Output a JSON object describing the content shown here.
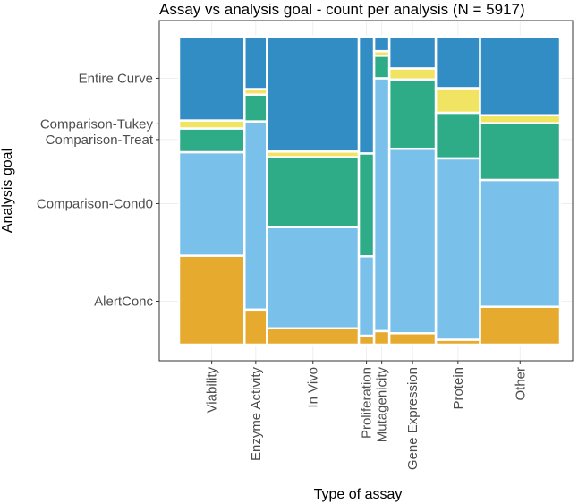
{
  "chart_data": {
    "type": "mosaic",
    "title": "Assay vs analysis goal - count per analysis (N = 5917)",
    "xlabel": "Type of assay",
    "ylabel": "Analysis goal",
    "grid": true,
    "legend": "none",
    "colors": {
      "AlertConc": "#E6A82A",
      "Comparison-Cond0": "#76C0EB",
      "Comparison-Treat": "#2AAA85",
      "Comparison-Tukey": "#F0E35F",
      "Entire Curve": "#2E8BC4"
    },
    "y_ticks": [
      {
        "label": "Entire Curve",
        "value": 0.865
      },
      {
        "label": "Comparison-Tukey",
        "value": 0.717
      },
      {
        "label": "Comparison-Treat",
        "value": 0.666
      },
      {
        "label": "Comparison-Cond0",
        "value": 0.458
      },
      {
        "label": "AlertConc",
        "value": 0.141
      }
    ],
    "goals": [
      "AlertConc",
      "Comparison-Cond0",
      "Comparison-Treat",
      "Comparison-Tukey",
      "Entire Curve"
    ],
    "categories": [
      {
        "name": "Viability",
        "width": 0.172,
        "proportions": [
          0.289,
          0.336,
          0.077,
          0.026,
          0.272
        ]
      },
      {
        "name": "Enzyme Activity",
        "width": 0.059,
        "proportions": [
          0.114,
          0.611,
          0.087,
          0.018,
          0.17
        ]
      },
      {
        "name": "In Vivo",
        "width": 0.241,
        "proportions": [
          0.053,
          0.329,
          0.227,
          0.018,
          0.373
        ]
      },
      {
        "name": "Proliferation",
        "width": 0.04,
        "proportions": [
          0.029,
          0.258,
          0.334,
          0.0,
          0.379
        ]
      },
      {
        "name": "Mutagenicity",
        "width": 0.04,
        "proportions": [
          0.044,
          0.821,
          0.073,
          0.015,
          0.047
        ]
      },
      {
        "name": "Gene Expression",
        "width": 0.122,
        "proportions": [
          0.037,
          0.599,
          0.225,
          0.036,
          0.103
        ]
      },
      {
        "name": "Protein",
        "width": 0.116,
        "proportions": [
          0.016,
          0.589,
          0.148,
          0.08,
          0.167
        ]
      },
      {
        "name": "Other",
        "width": 0.21,
        "proportions": [
          0.123,
          0.412,
          0.184,
          0.026,
          0.255
        ]
      }
    ]
  }
}
